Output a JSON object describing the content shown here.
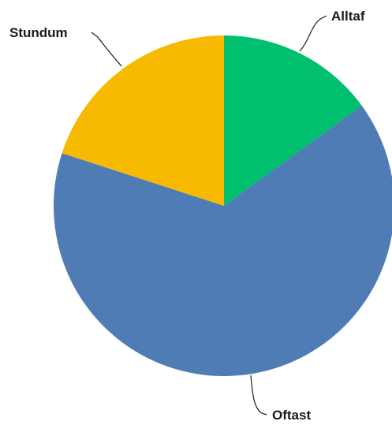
{
  "chart_data": {
    "type": "pie",
    "slices": [
      {
        "label": "Alltaf",
        "value": 15,
        "color": "#00BF6F"
      },
      {
        "label": "Oftast",
        "value": 65,
        "color": "#507CB6"
      },
      {
        "label": "Stundum",
        "value": 20,
        "color": "#F7BA00"
      }
    ],
    "start": "12 o'clock",
    "direction": "clockwise",
    "legend": "none"
  }
}
